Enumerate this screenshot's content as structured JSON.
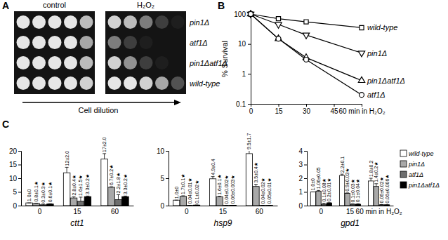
{
  "chart_data": [
    {
      "type": "spot_assay",
      "panel": "A",
      "columns": [
        "control",
        "H₂O₂"
      ],
      "rows": [
        "pin1Δ",
        "atf1Δ",
        "pin1Δatf1Δ",
        "wild-type"
      ],
      "xlabel": "Cell dilution",
      "growth": [
        [
          [
            1,
            1,
            1,
            1,
            0.8
          ],
          [
            0.9,
            0.8,
            0.5,
            0.2,
            0.05
          ]
        ],
        [
          [
            1,
            1,
            1,
            1,
            0.7
          ],
          [
            0.5,
            0.2,
            0.05,
            0,
            0
          ]
        ],
        [
          [
            1,
            1,
            1,
            1,
            0.8
          ],
          [
            0.9,
            0.6,
            0.2,
            0.05,
            0
          ]
        ],
        [
          [
            1,
            1,
            1,
            1,
            0.9
          ],
          [
            1,
            1,
            0.9,
            0.7,
            0.3
          ]
        ]
      ]
    },
    {
      "type": "line",
      "panel": "B",
      "log": "y",
      "ylabel": "% Survival",
      "x": [
        0,
        15,
        30,
        60
      ],
      "xlim": [
        0,
        60
      ],
      "xticks": [
        0,
        15,
        30,
        45,
        {
          "value": 60,
          "label": "60 min in H₂O₂"
        }
      ],
      "ylim": [
        0.1,
        100
      ],
      "yticks": [
        0.1,
        1,
        10,
        100
      ],
      "series": [
        {
          "name": "wild-type",
          "color": "#000000",
          "marker": "square",
          "values": [
            100,
            70,
            55,
            35
          ]
        },
        {
          "name": "pin1Δ",
          "color": "#000000",
          "marker": "triangle-down",
          "values": [
            100,
            45,
            20,
            5
          ]
        },
        {
          "name": "pin1Δatf1Δ",
          "color": "#000000",
          "marker": "triangle",
          "values": [
            100,
            15,
            3.5,
            0.6
          ]
        },
        {
          "name": "atf1Δ",
          "color": "#000000",
          "marker": "circle",
          "values": [
            100,
            15,
            3,
            0.2
          ]
        }
      ]
    },
    {
      "type": "bar",
      "panel": "C",
      "legend": "right",
      "data_labels": true,
      "series": [
        {
          "name": "wild-type",
          "color": "#ffffff"
        },
        {
          "name": "pin1Δ",
          "color": "#a8a8a8"
        },
        {
          "name": "atf1Δ",
          "color": "#6e6e6e"
        },
        {
          "name": "pin1Δatf1Δ",
          "color": "#000000"
        }
      ],
      "subplots": [
        {
          "xlabel": "ctt1",
          "categories": [
            "0",
            "15",
            "60"
          ],
          "ylim": [
            0,
            20
          ],
          "yticks": [
            0,
            5,
            10,
            15,
            20
          ],
          "values": [
            [
              1.0,
              12,
              17
            ],
            [
              0.8,
              2.8,
              6.7
            ],
            [
              0.3,
              1.6,
              2.2
            ],
            [
              0.6,
              3.3,
              3.3
            ]
          ],
          "errors": [
            [
              0,
              2.0,
              2.0
            ],
            [
              0.1,
              0.4,
              0.2
            ],
            [
              0.3,
              1.5,
              1.8
            ],
            [
              0.1,
              0.2,
              0.2
            ]
          ],
          "value_labels": [
            [
              "1.0±0",
              "12±2.0",
              "17±2.0"
            ],
            [
              "0.8±0.1★",
              "2.8±0.4★",
              "6.7±0.2★"
            ],
            [
              "0.3±0.3★",
              "1.6±1.5★",
              "2.2±1.8★"
            ],
            [
              "0.6±0.1★",
              "3.3±0.2★",
              "3.3±0.2★"
            ]
          ]
        },
        {
          "xlabel": "hsp9",
          "categories": [
            "0",
            "15",
            "60"
          ],
          "ylim": [
            0,
            10
          ],
          "yticks": [
            0,
            5,
            10
          ],
          "values": [
            [
              1.0,
              4.9,
              9.5
            ],
            [
              1.7,
              1.6,
              3.5
            ],
            [
              0.04,
              0.04,
              0.04
            ],
            [
              0.1,
              0.06,
              0.05
            ]
          ],
          "errors": [
            [
              0,
              0.4,
              1.7
            ],
            [
              0.1,
              0.1,
              0.4
            ],
            [
              0.01,
              0.002,
              0.02
            ],
            [
              0.02,
              0.003,
              0.01
            ]
          ],
          "value_labels": [
            [
              "1.0±0",
              "4.9±0.4",
              "9.5±1.7"
            ],
            [
              "1.7±0.1★",
              "1.6±0.1★",
              "3.5±0.4★"
            ],
            [
              "0.04±0.01★",
              "0.04±0.002★",
              "0.04±0.02★"
            ],
            [
              "0.1±0.02★",
              "0.06±0.003★",
              "0.05±0.01★"
            ]
          ]
        },
        {
          "xlabel": "gpd1",
          "categories": [
            "0",
            "15",
            "60 min in H₂O₂"
          ],
          "ylim": [
            0,
            4
          ],
          "yticks": [
            0,
            1,
            2,
            3,
            4
          ],
          "values": [
            [
              1.0,
              2.2,
              1.8
            ],
            [
              1.06,
              0.9,
              1.4
            ],
            [
              0.1,
              0.1,
              0.06
            ],
            [
              0.2,
              0.1,
              0.06
            ]
          ],
          "errors": [
            [
              0,
              0.1,
              0.2
            ],
            [
              0.05,
              0.03,
              0.2
            ],
            [
              0.08,
              0.03,
              0.02
            ],
            [
              0.01,
              0.04,
              0.006
            ]
          ],
          "value_labels": [
            [
              "1.0±0",
              "2.2±0.1",
              "1.8±0.2"
            ],
            [
              "1.06±0.05",
              "0.9±0.03★",
              "1.4±0.2★"
            ],
            [
              "0.1±0.08★",
              "0.1±0.03★",
              "0.06±0.02★"
            ],
            [
              "0.2±0.01★",
              "0.1±0.04★",
              "0.06±0.006★"
            ]
          ]
        }
      ]
    }
  ]
}
